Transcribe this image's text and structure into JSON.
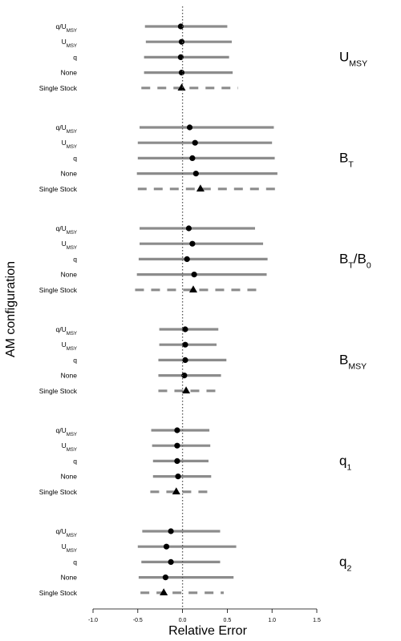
{
  "chart_data": {
    "type": "forest",
    "xlabel": "Relative Error",
    "ylabel": "AM configuration",
    "xlim": [
      -1.0,
      1.5
    ],
    "xticks": [
      "-1.0",
      "-0.5",
      "0.0",
      "0.5",
      "1.0",
      "1.5"
    ],
    "reference_line": 0,
    "categories": [
      {
        "main": "q/U",
        "sub": "MSY"
      },
      {
        "main": "U",
        "sub": "MSY"
      },
      {
        "main": "q",
        "sub": ""
      },
      {
        "main": "None",
        "sub": ""
      },
      {
        "main": "Single Stock",
        "sub": ""
      }
    ],
    "panels": [
      {
        "title": {
          "main": "U",
          "sub": "MSY",
          "suffix": "",
          "main2": "",
          "sub2": ""
        },
        "rows": [
          {
            "point": -0.02,
            "low": -0.42,
            "high": 0.5
          },
          {
            "point": -0.01,
            "low": -0.41,
            "high": 0.55
          },
          {
            "point": -0.02,
            "low": -0.43,
            "high": 0.52
          },
          {
            "point": -0.01,
            "low": -0.43,
            "high": 0.56
          },
          {
            "point": -0.01,
            "low": -0.46,
            "high": 0.62
          }
        ]
      },
      {
        "title": {
          "main": "B",
          "sub": "T",
          "suffix": "",
          "main2": "",
          "sub2": ""
        },
        "rows": [
          {
            "point": 0.08,
            "low": -0.48,
            "high": 1.02
          },
          {
            "point": 0.14,
            "low": -0.5,
            "high": 1.0
          },
          {
            "point": 0.11,
            "low": -0.5,
            "high": 1.03
          },
          {
            "point": 0.15,
            "low": -0.51,
            "high": 1.06
          },
          {
            "point": 0.2,
            "low": -0.5,
            "high": 1.04
          }
        ]
      },
      {
        "title": {
          "main": "B",
          "sub": "T",
          "suffix": "/",
          "main2": "B",
          "sub2": "0"
        },
        "rows": [
          {
            "point": 0.07,
            "low": -0.48,
            "high": 0.81
          },
          {
            "point": 0.11,
            "low": -0.48,
            "high": 0.9
          },
          {
            "point": 0.05,
            "low": -0.49,
            "high": 0.95
          },
          {
            "point": 0.13,
            "low": -0.51,
            "high": 0.94
          },
          {
            "point": 0.12,
            "low": -0.53,
            "high": 0.86
          }
        ]
      },
      {
        "title": {
          "main": "B",
          "sub": "MSY",
          "suffix": "",
          "main2": "",
          "sub2": ""
        },
        "rows": [
          {
            "point": 0.03,
            "low": -0.26,
            "high": 0.4
          },
          {
            "point": 0.03,
            "low": -0.26,
            "high": 0.38
          },
          {
            "point": 0.03,
            "low": -0.27,
            "high": 0.49
          },
          {
            "point": 0.02,
            "low": -0.27,
            "high": 0.43
          },
          {
            "point": 0.04,
            "low": -0.27,
            "high": 0.44
          }
        ]
      },
      {
        "title": {
          "main": "q",
          "sub": "1",
          "suffix": "",
          "main2": "",
          "sub2": ""
        },
        "rows": [
          {
            "point": -0.06,
            "low": -0.35,
            "high": 0.3
          },
          {
            "point": -0.06,
            "low": -0.34,
            "high": 0.31
          },
          {
            "point": -0.06,
            "low": -0.33,
            "high": 0.29
          },
          {
            "point": -0.05,
            "low": -0.33,
            "high": 0.32
          },
          {
            "point": -0.07,
            "low": -0.36,
            "high": 0.32
          }
        ]
      },
      {
        "title": {
          "main": "q",
          "sub": "2",
          "suffix": "",
          "main2": "",
          "sub2": ""
        },
        "rows": [
          {
            "point": -0.13,
            "low": -0.45,
            "high": 0.42
          },
          {
            "point": -0.18,
            "low": -0.5,
            "high": 0.6
          },
          {
            "point": -0.13,
            "low": -0.46,
            "high": 0.42
          },
          {
            "point": -0.19,
            "low": -0.49,
            "high": 0.57
          },
          {
            "point": -0.21,
            "low": -0.47,
            "high": 0.46
          }
        ]
      }
    ],
    "colors": {
      "interval": "#8c8c8c",
      "point": "#000000",
      "reference": "#555555"
    }
  }
}
